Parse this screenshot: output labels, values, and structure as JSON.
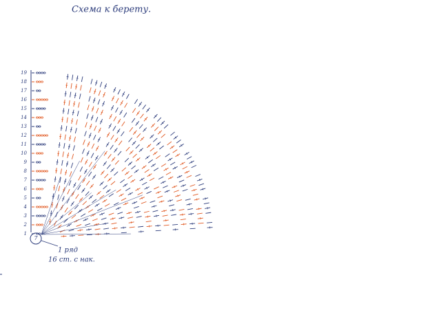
{
  "title": "Схема к берету.",
  "rows": [
    "1",
    "2",
    "3",
    "4",
    "5",
    "6",
    "7",
    "8",
    "9",
    "10",
    "11",
    "12",
    "13",
    "14",
    "15",
    "16",
    "17",
    "18",
    "19"
  ],
  "center": "7",
  "note": {
    "line1": "1 ряд",
    "line2": "16 ст. с нак."
  }
}
